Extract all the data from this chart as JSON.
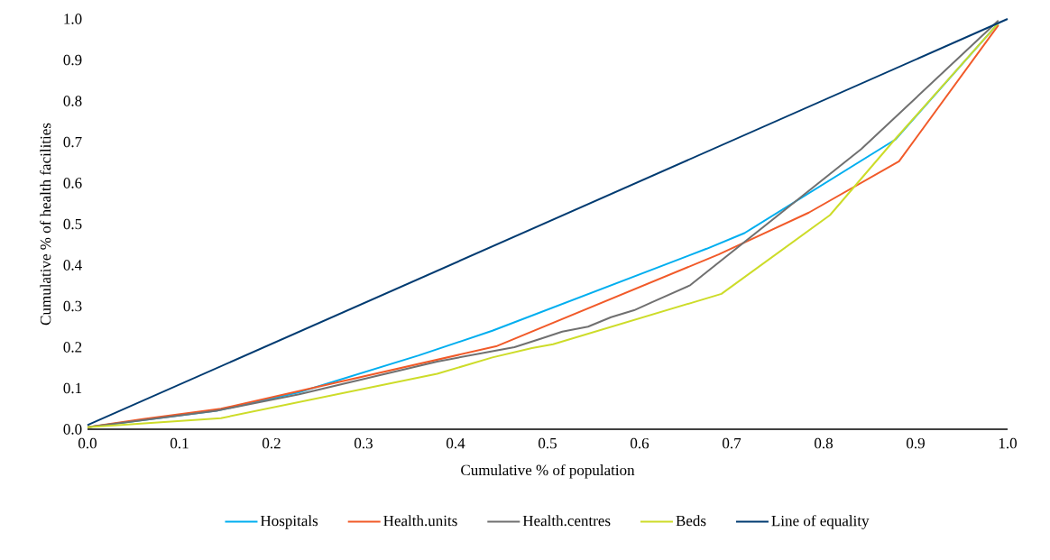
{
  "chart_data": {
    "type": "line",
    "xlabel": "Cumulative % of population",
    "ylabel": "Cumulative % of health facilities",
    "xlim": [
      0,
      1
    ],
    "ylim": [
      0,
      1
    ],
    "xticks": [
      {
        "value": 0,
        "label": "0.0"
      },
      {
        "value": 0.1,
        "label": "0.1"
      },
      {
        "value": 0.2,
        "label": "0.2"
      },
      {
        "value": 0.3,
        "label": "0.3"
      },
      {
        "value": 0.4,
        "label": "0.4"
      },
      {
        "value": 0.5,
        "label": "0.5"
      },
      {
        "value": 0.6,
        "label": "0.6"
      },
      {
        "value": 0.7,
        "label": "0.7"
      },
      {
        "value": 0.8,
        "label": "0.8"
      },
      {
        "value": 0.9,
        "label": "0.9"
      },
      {
        "value": 1,
        "label": "1.0"
      }
    ],
    "yticks": [
      {
        "value": 0,
        "label": "0.0"
      },
      {
        "value": 0.1,
        "label": "0.1"
      },
      {
        "value": 0.2,
        "label": "0.2"
      },
      {
        "value": 0.3,
        "label": "0.3"
      },
      {
        "value": 0.4,
        "label": "0.4"
      },
      {
        "value": 0.5,
        "label": "0.5"
      },
      {
        "value": 0.6,
        "label": "0.6"
      },
      {
        "value": 0.7,
        "label": "0.7"
      },
      {
        "value": 0.8,
        "label": "0.8"
      },
      {
        "value": 0.9,
        "label": "0.9"
      },
      {
        "value": 1,
        "label": "1.0"
      }
    ],
    "legend": "bottom",
    "marker": "none",
    "line_style": "solid",
    "series": [
      {
        "name": "Hospitals",
        "color": "#00aeef",
        "x": [
          0,
          0.14,
          0.23,
          0.36,
          0.44,
          0.673,
          0.714,
          0.878,
          0.99
        ],
        "values": [
          0.005,
          0.045,
          0.09,
          0.18,
          0.24,
          0.44,
          0.478,
          0.706,
          0.99
        ]
      },
      {
        "name": "Health.units",
        "color": "#f15a29",
        "x": [
          0,
          0.06,
          0.145,
          0.444,
          0.686,
          0.784,
          0.882,
          0.99
        ],
        "values": [
          0.005,
          0.025,
          0.05,
          0.202,
          0.426,
          0.528,
          0.653,
          0.985
        ]
      },
      {
        "name": "Health.centres",
        "color": "#707070",
        "x": [
          0,
          0.14,
          0.23,
          0.38,
          0.44,
          0.464,
          0.493,
          0.516,
          0.544,
          0.569,
          0.594,
          0.613,
          0.655,
          0.841,
          0.99
        ],
        "values": [
          0.005,
          0.045,
          0.085,
          0.165,
          0.19,
          0.2,
          0.221,
          0.238,
          0.25,
          0.273,
          0.29,
          0.309,
          0.351,
          0.683,
          0.996
        ]
      },
      {
        "name": "Beds",
        "color": "#cddc29",
        "x": [
          0,
          0.145,
          0.38,
          0.44,
          0.483,
          0.506,
          0.689,
          0.807,
          0.875,
          0.99
        ],
        "values": [
          0.005,
          0.027,
          0.135,
          0.175,
          0.198,
          0.207,
          0.33,
          0.522,
          0.7,
          0.99
        ]
      },
      {
        "name": "Line of equality",
        "color": "#003b71",
        "x": [
          0,
          1
        ],
        "values": [
          0.01,
          1
        ]
      }
    ]
  }
}
